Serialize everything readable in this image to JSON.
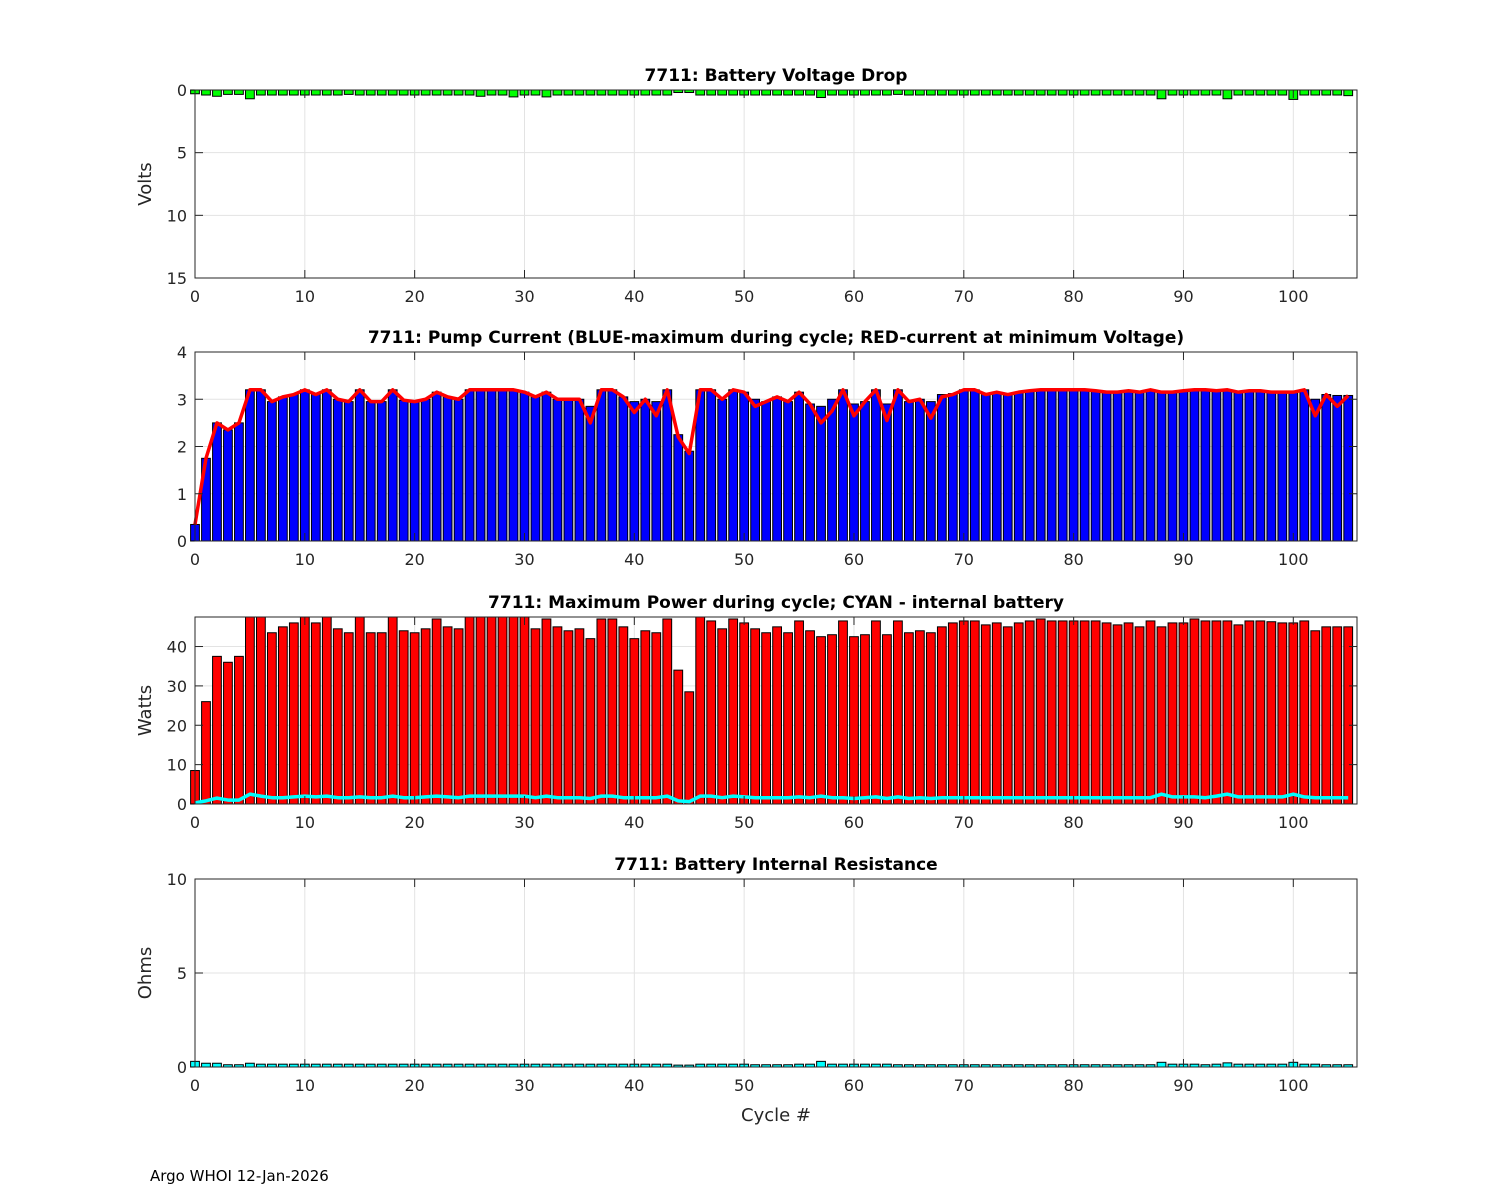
{
  "footer": "Argo WHOI 12-Jan-2026",
  "colors": {
    "green": "#00ff00",
    "blue": "#0000ff",
    "red": "#ff0000",
    "cyan": "#00ffff",
    "grid": "#e3e3e3",
    "axis": "#262626"
  },
  "chart_data": [
    {
      "type": "bar",
      "title": "7711: Battery Voltage Drop",
      "xlabel": "",
      "ylabel": "Volts",
      "xlim": [
        0,
        105.8
      ],
      "ylim": [
        0,
        15
      ],
      "y_reversed": true,
      "grid": true,
      "xticks": [
        0,
        10,
        20,
        30,
        40,
        50,
        60,
        70,
        80,
        90,
        100
      ],
      "yticks": [
        0,
        5,
        10,
        15
      ],
      "series": [
        {
          "name": "Voltage drop",
          "color": "#00ff00",
          "kind": "bar",
          "values": [
            0.3,
            0.4,
            0.5,
            0.35,
            0.35,
            0.7,
            0.4,
            0.4,
            0.4,
            0.4,
            0.4,
            0.4,
            0.4,
            0.4,
            0.35,
            0.4,
            0.4,
            0.4,
            0.4,
            0.4,
            0.4,
            0.4,
            0.4,
            0.4,
            0.4,
            0.4,
            0.5,
            0.4,
            0.4,
            0.55,
            0.4,
            0.4,
            0.55,
            0.4,
            0.4,
            0.4,
            0.4,
            0.4,
            0.4,
            0.4,
            0.4,
            0.4,
            0.4,
            0.4,
            0.2,
            0.2,
            0.4,
            0.4,
            0.4,
            0.4,
            0.4,
            0.4,
            0.4,
            0.4,
            0.4,
            0.4,
            0.4,
            0.6,
            0.4,
            0.4,
            0.4,
            0.4,
            0.4,
            0.4,
            0.35,
            0.4,
            0.4,
            0.4,
            0.4,
            0.4,
            0.4,
            0.4,
            0.4,
            0.4,
            0.4,
            0.4,
            0.4,
            0.4,
            0.4,
            0.4,
            0.4,
            0.4,
            0.4,
            0.4,
            0.4,
            0.4,
            0.4,
            0.4,
            0.7,
            0.4,
            0.4,
            0.4,
            0.4,
            0.4,
            0.7,
            0.4,
            0.4,
            0.4,
            0.4,
            0.4,
            0.75,
            0.4,
            0.4,
            0.4,
            0.4,
            0.45
          ]
        }
      ]
    },
    {
      "type": "bar",
      "title": "7711: Pump Current (BLUE-maximum during cycle; RED-current at minimum Voltage)",
      "xlabel": "",
      "ylabel": "",
      "xlim": [
        0,
        105.8
      ],
      "ylim": [
        0,
        4
      ],
      "grid": true,
      "xticks": [
        0,
        10,
        20,
        30,
        40,
        50,
        60,
        70,
        80,
        90,
        100
      ],
      "yticks": [
        0,
        1,
        2,
        3,
        4
      ],
      "series": [
        {
          "name": "maximum during cycle",
          "color": "#0000ff",
          "kind": "bar",
          "values": [
            0.35,
            1.75,
            2.5,
            2.35,
            2.5,
            3.2,
            3.2,
            2.95,
            3.05,
            3.1,
            3.2,
            3.1,
            3.2,
            3.0,
            2.95,
            3.2,
            2.95,
            2.95,
            3.2,
            2.98,
            2.95,
            3.0,
            3.15,
            3.05,
            3.0,
            3.2,
            3.2,
            3.2,
            3.2,
            3.2,
            3.15,
            3.05,
            3.15,
            3.0,
            3.0,
            3.0,
            2.85,
            3.2,
            3.2,
            3.05,
            2.95,
            3.0,
            2.95,
            3.2,
            2.25,
            1.9,
            3.2,
            3.2,
            3.0,
            3.2,
            3.15,
            3.0,
            2.95,
            3.05,
            2.95,
            3.15,
            2.9,
            2.85,
            3.0,
            3.2,
            2.9,
            2.95,
            3.2,
            2.9,
            3.2,
            2.95,
            3.0,
            2.95,
            3.1,
            3.12,
            3.2,
            3.2,
            3.1,
            3.15,
            3.1,
            3.15,
            3.18,
            3.2,
            3.2,
            3.2,
            3.2,
            3.2,
            3.18,
            3.15,
            3.15,
            3.18,
            3.15,
            3.2,
            3.15,
            3.15,
            3.18,
            3.2,
            3.2,
            3.18,
            3.2,
            3.15,
            3.18,
            3.18,
            3.15,
            3.15,
            3.15,
            3.2,
            3.0,
            3.1,
            3.08,
            3.08
          ]
        },
        {
          "name": "current at minimum Voltage",
          "color": "#ff0000",
          "kind": "line",
          "values": [
            0.35,
            1.75,
            2.5,
            2.35,
            2.5,
            3.2,
            3.2,
            2.95,
            3.05,
            3.1,
            3.2,
            3.1,
            3.2,
            3.0,
            2.95,
            3.2,
            2.95,
            2.95,
            3.2,
            2.98,
            2.95,
            3.0,
            3.15,
            3.05,
            3.0,
            3.2,
            3.2,
            3.2,
            3.2,
            3.2,
            3.15,
            3.05,
            3.15,
            3.0,
            3.0,
            3.0,
            2.5,
            3.2,
            3.2,
            3.05,
            2.72,
            3.0,
            2.65,
            3.2,
            2.2,
            1.85,
            3.2,
            3.2,
            3.0,
            3.2,
            3.15,
            2.85,
            2.95,
            3.05,
            2.95,
            3.15,
            2.9,
            2.5,
            2.75,
            3.2,
            2.65,
            2.95,
            3.2,
            2.55,
            3.2,
            2.95,
            3.0,
            2.6,
            3.05,
            3.1,
            3.2,
            3.2,
            3.1,
            3.15,
            3.1,
            3.15,
            3.18,
            3.2,
            3.2,
            3.2,
            3.2,
            3.2,
            3.18,
            3.15,
            3.15,
            3.18,
            3.15,
            3.2,
            3.15,
            3.15,
            3.18,
            3.2,
            3.2,
            3.18,
            3.2,
            3.15,
            3.18,
            3.18,
            3.15,
            3.15,
            3.15,
            3.2,
            2.65,
            3.1,
            2.85,
            3.08
          ]
        }
      ]
    },
    {
      "type": "bar",
      "title": "7711: Maximum Power during cycle; CYAN - internal battery",
      "xlabel": "",
      "ylabel": "Watts",
      "xlim": [
        0,
        105.8
      ],
      "ylim": [
        0,
        47.5
      ],
      "grid": true,
      "xticks": [
        0,
        10,
        20,
        30,
        40,
        50,
        60,
        70,
        80,
        90,
        100
      ],
      "yticks": [
        0,
        10,
        20,
        30,
        40
      ],
      "series": [
        {
          "name": "Maximum Power",
          "color": "#ff0000",
          "kind": "bar",
          "values": [
            8.5,
            26,
            37.5,
            36,
            37.5,
            47.5,
            47.5,
            43.5,
            45,
            46,
            47.5,
            46,
            47.5,
            44.5,
            43.5,
            47.5,
            43.5,
            43.5,
            47.5,
            44,
            43.5,
            44.5,
            47,
            45,
            44.5,
            47.5,
            47.5,
            47.5,
            47.5,
            47.5,
            47.5,
            44.5,
            47,
            45,
            44,
            44.5,
            42,
            47,
            47,
            45,
            42,
            44,
            43.5,
            47,
            34,
            28.5,
            47.5,
            46.5,
            44.5,
            47,
            46,
            44.5,
            43.5,
            45,
            43.5,
            46.5,
            44,
            42.5,
            43,
            46.5,
            42.5,
            43,
            46.5,
            43,
            46.5,
            43.5,
            44,
            43.5,
            45,
            46,
            46.5,
            46.5,
            45.5,
            46,
            45,
            46,
            46.5,
            47,
            46.5,
            46.5,
            46.5,
            46.5,
            46.5,
            46,
            45.5,
            46,
            45,
            46.5,
            45,
            46,
            46,
            47,
            46.5,
            46.5,
            46.5,
            45.5,
            46.5,
            46.5,
            46.3,
            46,
            46,
            46.5,
            44,
            45,
            45,
            45
          ]
        },
        {
          "name": "internal battery",
          "color": "#00ffff",
          "kind": "line",
          "values": [
            0.3,
            0.8,
            1.5,
            1,
            1,
            2.5,
            2,
            1.6,
            1.6,
            1.8,
            2,
            1.8,
            2,
            1.6,
            1.6,
            1.8,
            1.6,
            1.6,
            2,
            1.6,
            1.6,
            1.8,
            2,
            1.8,
            1.6,
            2,
            2,
            2,
            2,
            2,
            2,
            1.6,
            2,
            1.6,
            1.6,
            1.6,
            1.4,
            2,
            2,
            1.6,
            1.6,
            1.6,
            1.6,
            2,
            0.8,
            0.6,
            2,
            2,
            1.6,
            2,
            1.8,
            1.6,
            1.6,
            1.6,
            1.6,
            1.8,
            1.6,
            2,
            1.6,
            1.6,
            1.4,
            1.6,
            1.8,
            1.4,
            1.8,
            1.4,
            1.6,
            1.4,
            1.6,
            1.6,
            1.6,
            1.6,
            1.6,
            1.6,
            1.6,
            1.6,
            1.6,
            1.6,
            1.6,
            1.6,
            1.6,
            1.6,
            1.6,
            1.6,
            1.6,
            1.6,
            1.6,
            1.6,
            2.5,
            1.8,
            1.8,
            1.8,
            1.6,
            2,
            2.5,
            1.8,
            1.8,
            1.8,
            1.8,
            1.8,
            2.5,
            1.8,
            1.6,
            1.6,
            1.6,
            1.6
          ]
        }
      ]
    },
    {
      "type": "bar",
      "title": "7711: Battery Internal Resistance",
      "xlabel": "Cycle #",
      "ylabel": "Ohms",
      "xlim": [
        0,
        105.8
      ],
      "ylim": [
        0,
        10
      ],
      "grid": true,
      "xticks": [
        0,
        10,
        20,
        30,
        40,
        50,
        60,
        70,
        80,
        90,
        100
      ],
      "yticks": [
        0,
        5,
        10
      ],
      "series": [
        {
          "name": "Internal Resistance",
          "color": "#00ffff",
          "kind": "bar",
          "values": [
            0.3,
            0.2,
            0.2,
            0.12,
            0.12,
            0.2,
            0.15,
            0.15,
            0.15,
            0.15,
            0.15,
            0.15,
            0.15,
            0.15,
            0.15,
            0.15,
            0.15,
            0.15,
            0.15,
            0.15,
            0.15,
            0.15,
            0.15,
            0.15,
            0.15,
            0.15,
            0.15,
            0.15,
            0.15,
            0.15,
            0.15,
            0.15,
            0.15,
            0.15,
            0.15,
            0.15,
            0.15,
            0.15,
            0.15,
            0.15,
            0.15,
            0.15,
            0.15,
            0.15,
            0.1,
            0.1,
            0.15,
            0.15,
            0.15,
            0.15,
            0.15,
            0.12,
            0.12,
            0.12,
            0.12,
            0.15,
            0.15,
            0.3,
            0.15,
            0.15,
            0.15,
            0.15,
            0.15,
            0.15,
            0.12,
            0.12,
            0.12,
            0.12,
            0.12,
            0.12,
            0.12,
            0.12,
            0.12,
            0.12,
            0.12,
            0.12,
            0.12,
            0.12,
            0.12,
            0.12,
            0.12,
            0.12,
            0.12,
            0.12,
            0.12,
            0.12,
            0.12,
            0.12,
            0.25,
            0.15,
            0.15,
            0.15,
            0.12,
            0.15,
            0.22,
            0.15,
            0.15,
            0.15,
            0.15,
            0.15,
            0.25,
            0.15,
            0.15,
            0.12,
            0.12,
            0.12
          ]
        }
      ]
    }
  ]
}
